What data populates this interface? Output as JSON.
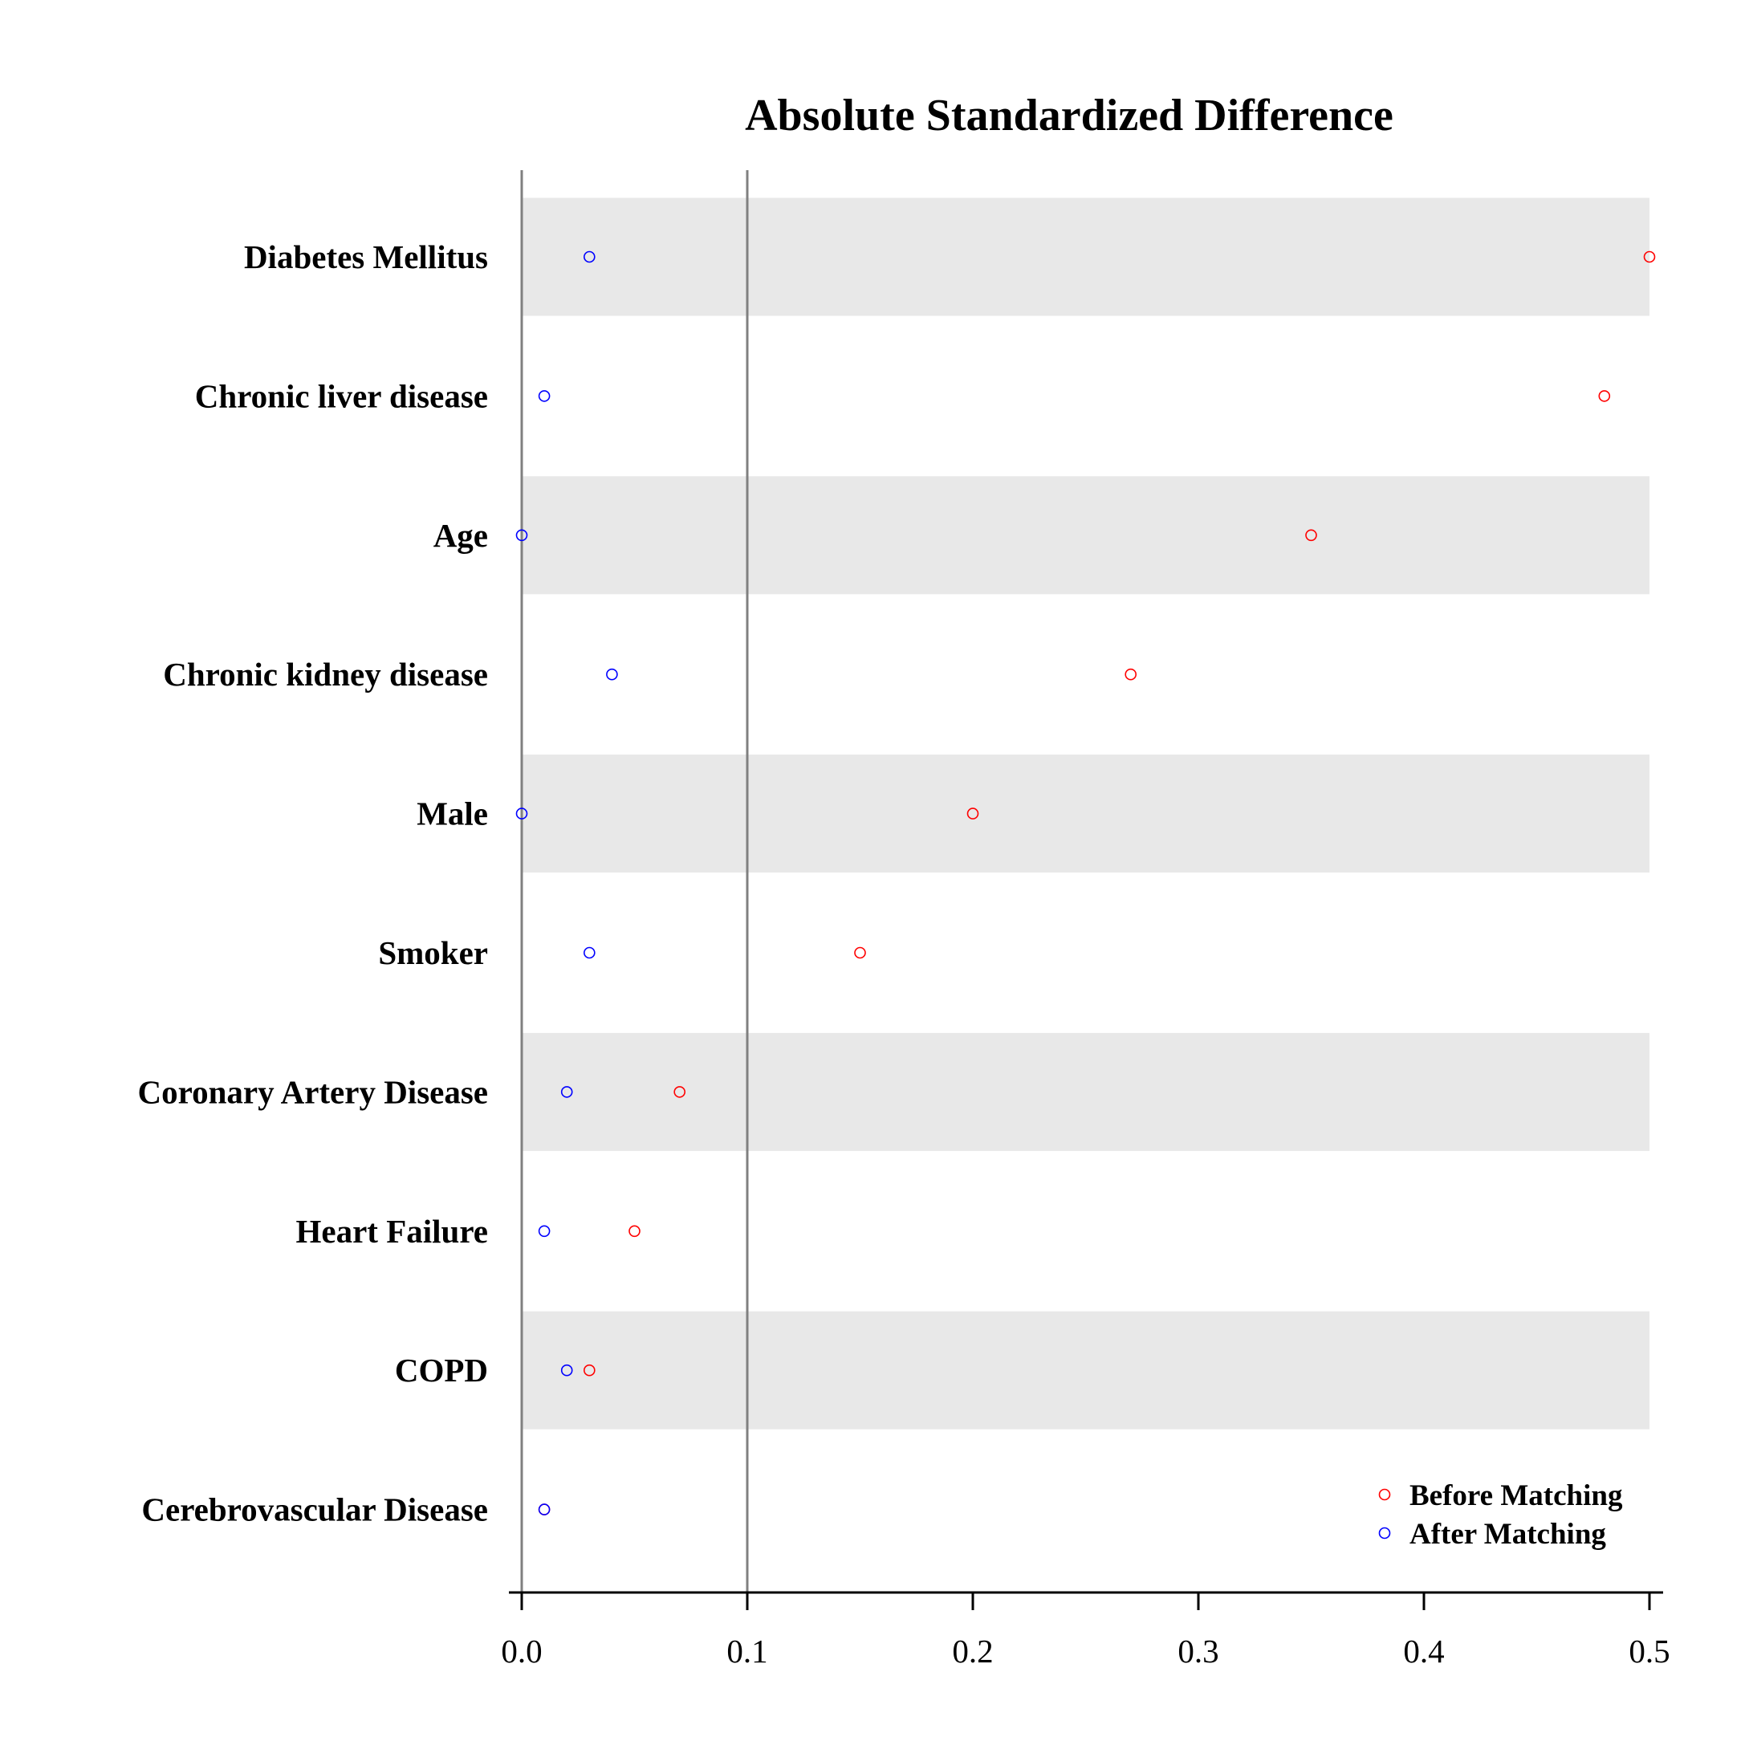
{
  "chart_data": {
    "type": "scatter",
    "title": "Absolute Standardized Difference",
    "xlabel": "",
    "ylabel": "",
    "xlim": [
      0,
      0.5
    ],
    "xticks": [
      "0.0",
      "0.1",
      "0.2",
      "0.3",
      "0.4",
      "0.5"
    ],
    "reference_lines": [
      0,
      0.1
    ],
    "categories": [
      "Diabetes Mellitus",
      "Chronic liver disease",
      "Age",
      "Chronic kidney disease",
      "Male",
      "Smoker",
      "Coronary Artery Disease",
      "Heart Failure",
      "COPD",
      "Cerebrovascular Disease"
    ],
    "series": [
      {
        "name": "Before Matching",
        "color": "#ff0000",
        "values": [
          0.5,
          0.48,
          0.35,
          0.27,
          0.2,
          0.15,
          0.07,
          0.05,
          0.03,
          0.01
        ]
      },
      {
        "name": "After Matching",
        "color": "#0000ff",
        "values": [
          0.03,
          0.01,
          0.0,
          0.04,
          0.0,
          0.03,
          0.02,
          0.01,
          0.02,
          0.01
        ]
      }
    ],
    "band_color": "#e8e8e8",
    "legend_position": "bottom-right",
    "grid": false
  }
}
